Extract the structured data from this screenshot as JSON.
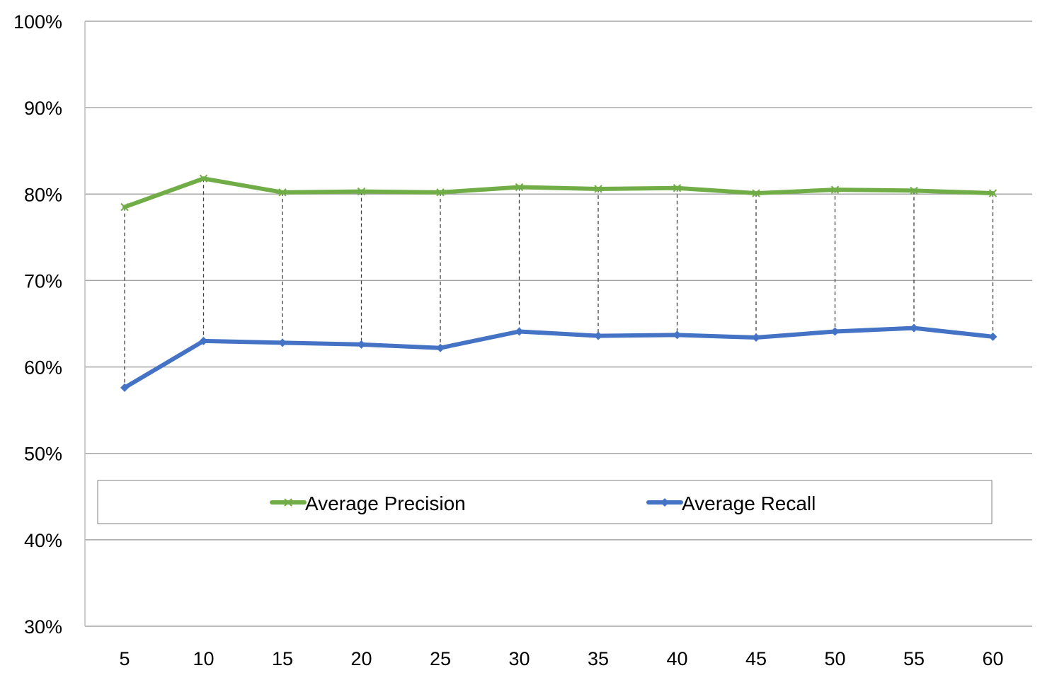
{
  "chart_data": {
    "type": "line",
    "categories": [
      "5",
      "10",
      "15",
      "20",
      "25",
      "30",
      "35",
      "40",
      "45",
      "50",
      "55",
      "60"
    ],
    "series": [
      {
        "name": "Average Precision",
        "color": "#70AD47",
        "marker": "x",
        "values": [
          0.785,
          0.818,
          0.802,
          0.803,
          0.802,
          0.808,
          0.806,
          0.807,
          0.801,
          0.805,
          0.804,
          0.801
        ]
      },
      {
        "name": "Average Recall",
        "color": "#4472C4",
        "marker": "diamond",
        "values": [
          0.576,
          0.63,
          0.628,
          0.626,
          0.622,
          0.641,
          0.636,
          0.637,
          0.634,
          0.641,
          0.645,
          0.635
        ]
      }
    ],
    "y_ticks": [
      "30%",
      "40%",
      "50%",
      "60%",
      "70%",
      "80%",
      "90%",
      "100%"
    ],
    "ylim": [
      0.3,
      1.0
    ],
    "drop_lines": true,
    "grid": true,
    "legend_position": "inside-lower"
  }
}
